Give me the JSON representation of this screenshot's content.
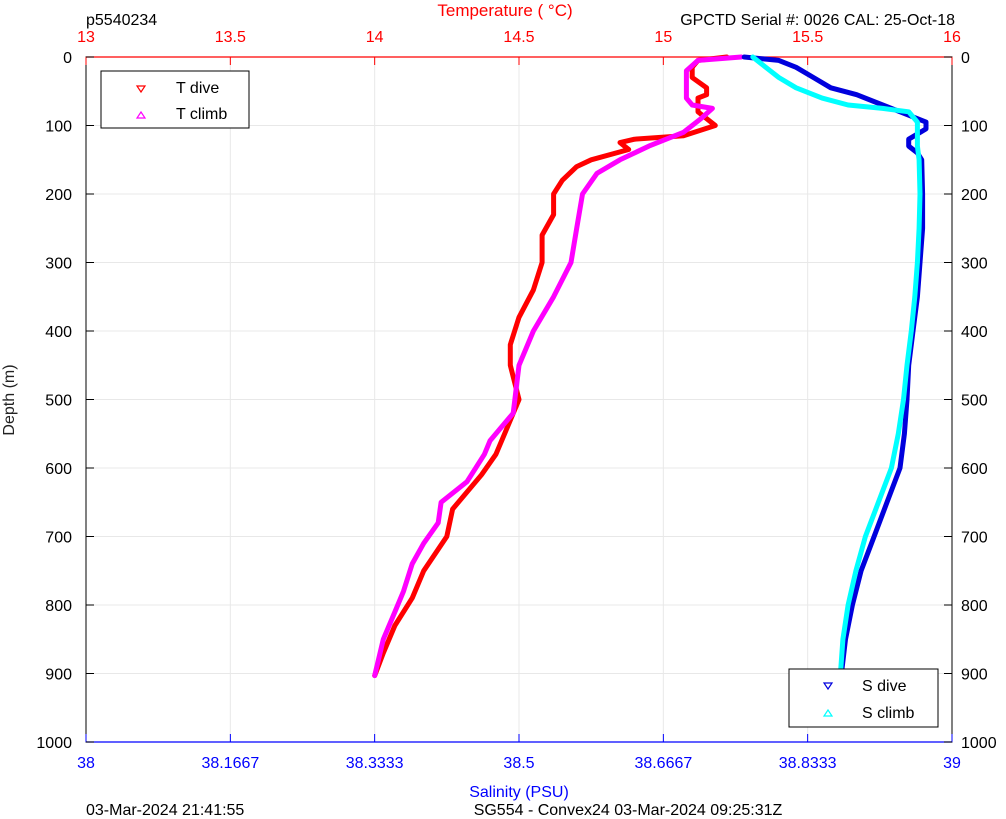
{
  "header": {
    "left": "p5540234",
    "right": "GPCTD Serial #: 0026 CAL: 25-Oct-18"
  },
  "footer": {
    "left": "03-Mar-2024 21:41:55",
    "center": "SG554 - Convex24 03-Mar-2024 09:25:31Z"
  },
  "colors": {
    "temperature_axis": "#ff0000",
    "salinity_axis": "#0000ff",
    "t_dive": "#ff0000",
    "t_climb": "#ff00ff",
    "s_dive": "#0000dd",
    "s_climb": "#00ffff",
    "grid": "#e8e8e8"
  },
  "chart_data": {
    "type": "line",
    "ylabel": "Depth (m)",
    "ylim": [
      0,
      1000
    ],
    "y_reversed": true,
    "y_ticks": [
      "0",
      "100",
      "200",
      "300",
      "400",
      "500",
      "600",
      "700",
      "800",
      "900",
      "1000"
    ],
    "top_axis": {
      "label": "Temperature (    °C)",
      "range": [
        13,
        16
      ],
      "ticks": [
        "13",
        "13.5",
        "14",
        "14.5",
        "15",
        "15.5",
        "16"
      ]
    },
    "bottom_axis": {
      "label": "Salinity (PSU)",
      "range": [
        38,
        39
      ],
      "ticks": [
        "38",
        "38.1667",
        "38.3333",
        "38.5",
        "38.6667",
        "38.8333",
        "39"
      ]
    },
    "grid": true,
    "legends": [
      {
        "position": "top-left",
        "entries": [
          "T dive",
          "T climb"
        ]
      },
      {
        "position": "bottom-right",
        "entries": [
          "S dive",
          "S climb"
        ]
      }
    ],
    "series": [
      {
        "name": "T dive",
        "axis": "temperature",
        "marker": "down-triangle",
        "points": [
          [
            15.22,
            0
          ],
          [
            15.12,
            5
          ],
          [
            15.1,
            15
          ],
          [
            15.1,
            30
          ],
          [
            15.15,
            45
          ],
          [
            15.15,
            55
          ],
          [
            15.12,
            60
          ],
          [
            15.12,
            80
          ],
          [
            15.18,
            100
          ],
          [
            15.07,
            115
          ],
          [
            14.9,
            120
          ],
          [
            14.85,
            125
          ],
          [
            14.88,
            135
          ],
          [
            14.75,
            150
          ],
          [
            14.7,
            160
          ],
          [
            14.65,
            180
          ],
          [
            14.62,
            200
          ],
          [
            14.62,
            230
          ],
          [
            14.58,
            260
          ],
          [
            14.58,
            300
          ],
          [
            14.55,
            340
          ],
          [
            14.5,
            380
          ],
          [
            14.47,
            420
          ],
          [
            14.47,
            450
          ],
          [
            14.5,
            500
          ],
          [
            14.45,
            550
          ],
          [
            14.42,
            580
          ],
          [
            14.37,
            610
          ],
          [
            14.27,
            660
          ],
          [
            14.25,
            700
          ],
          [
            14.17,
            750
          ],
          [
            14.13,
            790
          ],
          [
            14.07,
            830
          ],
          [
            14.03,
            870
          ],
          [
            14.0,
            903
          ]
        ]
      },
      {
        "name": "T climb",
        "axis": "temperature",
        "marker": "up-triangle",
        "points": [
          [
            15.27,
            0
          ],
          [
            15.12,
            5
          ],
          [
            15.08,
            20
          ],
          [
            15.08,
            40
          ],
          [
            15.08,
            60
          ],
          [
            15.1,
            70
          ],
          [
            15.17,
            75
          ],
          [
            15.13,
            90
          ],
          [
            15.07,
            110
          ],
          [
            14.95,
            130
          ],
          [
            14.85,
            150
          ],
          [
            14.77,
            170
          ],
          [
            14.72,
            200
          ],
          [
            14.7,
            250
          ],
          [
            14.68,
            300
          ],
          [
            14.62,
            350
          ],
          [
            14.55,
            400
          ],
          [
            14.5,
            450
          ],
          [
            14.48,
            520
          ],
          [
            14.4,
            560
          ],
          [
            14.38,
            580
          ],
          [
            14.32,
            620
          ],
          [
            14.23,
            650
          ],
          [
            14.22,
            680
          ],
          [
            14.17,
            710
          ],
          [
            14.13,
            740
          ],
          [
            14.1,
            780
          ],
          [
            14.07,
            810
          ],
          [
            14.03,
            850
          ],
          [
            14.0,
            903
          ]
        ]
      },
      {
        "name": "S dive",
        "axis": "salinity",
        "marker": "down-triangle",
        "points": [
          [
            38.76,
            0
          ],
          [
            38.8,
            5
          ],
          [
            38.82,
            15
          ],
          [
            38.84,
            30
          ],
          [
            38.86,
            45
          ],
          [
            38.89,
            55
          ],
          [
            38.92,
            70
          ],
          [
            38.95,
            85
          ],
          [
            38.97,
            95
          ],
          [
            38.97,
            105
          ],
          [
            38.95,
            120
          ],
          [
            38.95,
            130
          ],
          [
            38.96,
            140
          ],
          [
            38.965,
            150
          ],
          [
            38.966,
            200
          ],
          [
            38.966,
            250
          ],
          [
            38.963,
            300
          ],
          [
            38.96,
            350
          ],
          [
            38.955,
            400
          ],
          [
            38.95,
            450
          ],
          [
            38.948,
            500
          ],
          [
            38.945,
            550
          ],
          [
            38.94,
            600
          ],
          [
            38.925,
            650
          ],
          [
            38.91,
            700
          ],
          [
            38.895,
            750
          ],
          [
            38.885,
            800
          ],
          [
            38.877,
            850
          ],
          [
            38.872,
            903
          ]
        ]
      },
      {
        "name": "S climb",
        "axis": "salinity",
        "marker": "up-triangle",
        "points": [
          [
            38.77,
            0
          ],
          [
            38.78,
            10
          ],
          [
            38.79,
            20
          ],
          [
            38.8,
            30
          ],
          [
            38.82,
            45
          ],
          [
            38.85,
            60
          ],
          [
            38.88,
            70
          ],
          [
            38.92,
            75
          ],
          [
            38.95,
            80
          ],
          [
            38.96,
            95
          ],
          [
            38.96,
            115
          ],
          [
            38.96,
            130
          ],
          [
            38.962,
            150
          ],
          [
            38.963,
            200
          ],
          [
            38.962,
            250
          ],
          [
            38.96,
            300
          ],
          [
            38.957,
            350
          ],
          [
            38.953,
            400
          ],
          [
            38.948,
            450
          ],
          [
            38.944,
            500
          ],
          [
            38.938,
            550
          ],
          [
            38.93,
            600
          ],
          [
            38.915,
            650
          ],
          [
            38.9,
            700
          ],
          [
            38.889,
            750
          ],
          [
            38.88,
            800
          ],
          [
            38.874,
            850
          ],
          [
            38.871,
            903
          ]
        ]
      }
    ]
  }
}
